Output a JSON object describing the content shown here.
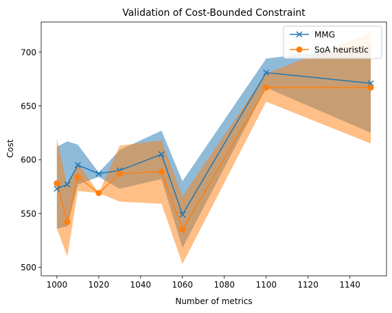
{
  "chart_data": {
    "type": "line",
    "title": "Validation of Cost-Bounded Constraint",
    "xlabel": "Number of metrics",
    "ylabel": "Cost",
    "xlim": [
      992.5,
      1157.5
    ],
    "ylim": [
      492,
      728
    ],
    "xticks": [
      1000,
      1020,
      1040,
      1060,
      1080,
      1100,
      1120,
      1140
    ],
    "yticks": [
      500,
      550,
      600,
      650,
      700
    ],
    "grid": false,
    "legend_position": "top-right",
    "x": [
      1000,
      1005,
      1010,
      1020,
      1030,
      1050,
      1060,
      1100,
      1150
    ],
    "series": [
      {
        "name": "MMG",
        "marker": "x",
        "color": "#1f77b4",
        "band_color": "#1f77b4",
        "values": [
          573,
          577,
          595,
          587,
          590,
          605,
          549,
          681,
          671
        ],
        "upper": [
          612,
          617,
          614,
          588,
          609,
          627,
          580,
          694,
          706
        ],
        "lower": [
          536,
          538,
          577,
          584,
          573,
          582,
          518,
          667,
          625
        ]
      },
      {
        "name": "SoA heuristic",
        "marker": "o",
        "color": "#ff7f0e",
        "band_color": "#ff7f0e",
        "values": [
          578,
          542,
          584,
          569,
          587,
          589,
          535,
          667,
          667
        ],
        "upper": [
          620,
          575,
          597,
          569,
          613,
          618,
          566,
          680,
          718
        ],
        "lower": [
          536,
          510,
          571,
          569,
          561,
          559,
          503,
          654,
          615
        ]
      }
    ]
  }
}
